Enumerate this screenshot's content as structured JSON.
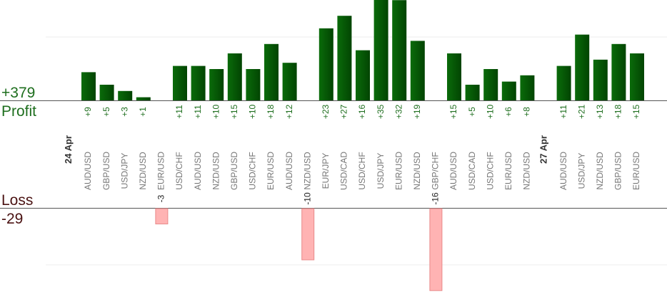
{
  "summary": {
    "profit_total": "+379",
    "profit_label": "Profit",
    "loss_label": "Loss",
    "loss_total": "-29"
  },
  "colors": {
    "profit_bar": "#0a6b0a",
    "profit_bar_dark": "#024402",
    "profit_text": "#1e6e1e",
    "loss_bar": "#ffb3b3",
    "loss_bar_border": "#e88a8a",
    "loss_text": "#222222",
    "category_text": "#777777",
    "date_text": "#333333"
  },
  "chart_data": {
    "type": "bar",
    "profit_axis": {
      "ylim": [
        0,
        40
      ]
    },
    "loss_axis": {
      "ylim": [
        -18,
        0
      ]
    },
    "days": [
      {
        "date": "24 Apr",
        "trades": [
          {
            "pair": "AUD/USD",
            "value": 9,
            "label": "+9"
          },
          {
            "pair": "GBP/USD",
            "value": 5,
            "label": "+5"
          },
          {
            "pair": "USD/JPY",
            "value": 3,
            "label": "+3"
          },
          {
            "pair": "NZD/USD",
            "value": 1,
            "label": "+1"
          },
          {
            "pair": "EUR/USD",
            "value": -3,
            "label": "-3"
          },
          {
            "pair": "USD/CHF",
            "value": 11,
            "label": "+11"
          },
          {
            "pair": "AUD/USD",
            "value": 11,
            "label": "+11"
          },
          {
            "pair": "NZD/USD",
            "value": 10,
            "label": "+10"
          },
          {
            "pair": "GBP/USD",
            "value": 15,
            "label": "+15"
          },
          {
            "pair": "USD/CHF",
            "value": 10,
            "label": "+10"
          },
          {
            "pair": "EUR/USD",
            "value": 18,
            "label": "+18"
          },
          {
            "pair": "AUD/USD",
            "value": 12,
            "label": "+12"
          },
          {
            "pair": "NZD/USD",
            "value": -10,
            "label": "-10"
          },
          {
            "pair": "EUR/JPY",
            "value": 23,
            "label": "+23"
          },
          {
            "pair": "USD/CAD",
            "value": 27,
            "label": "+27"
          },
          {
            "pair": "USD/CHF",
            "value": 16,
            "label": "+16"
          },
          {
            "pair": "USD/JPY",
            "value": 35,
            "label": "+35"
          },
          {
            "pair": "EUR/USD",
            "value": 32,
            "label": "+32"
          },
          {
            "pair": "NZD/USD",
            "value": 19,
            "label": "+19"
          },
          {
            "pair": "GBP/CHF",
            "value": -16,
            "label": "-16"
          },
          {
            "pair": "AUD/USD",
            "value": 15,
            "label": "+15"
          },
          {
            "pair": "USD/CAD",
            "value": 5,
            "label": "+5"
          },
          {
            "pair": "USD/CHF",
            "value": 10,
            "label": "+10"
          },
          {
            "pair": "EUR/USD",
            "value": 6,
            "label": "+6"
          },
          {
            "pair": "NZD/USD",
            "value": 8,
            "label": "+8"
          }
        ]
      },
      {
        "date": "27 Apr",
        "trades": [
          {
            "pair": "AUD/USD",
            "value": 11,
            "label": "+11"
          },
          {
            "pair": "USD/JPY",
            "value": 21,
            "label": "+21"
          },
          {
            "pair": "NZD/USD",
            "value": 13,
            "label": "+13"
          },
          {
            "pair": "GBP/USD",
            "value": 18,
            "label": "+18"
          },
          {
            "pair": "EUR/USD",
            "value": 15,
            "label": "+15"
          }
        ]
      }
    ]
  }
}
